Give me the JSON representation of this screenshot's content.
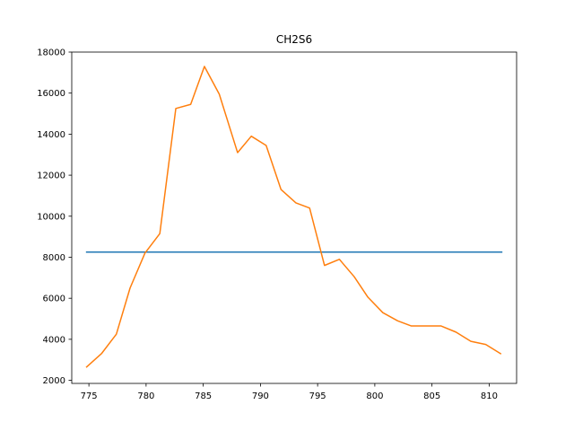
{
  "chart_data": {
    "type": "line",
    "title": "CH2S6",
    "xlabel": "",
    "ylabel": "",
    "xlim": [
      773.5,
      812.4
    ],
    "ylim": [
      1850,
      18000
    ],
    "x_ticks": [
      775,
      780,
      785,
      790,
      795,
      800,
      805,
      810
    ],
    "y_ticks": [
      2000,
      4000,
      6000,
      8000,
      10000,
      12000,
      14000,
      16000,
      18000
    ],
    "grid": false,
    "series": [
      {
        "color": "#1f77b4",
        "x": [
          774.8,
          811.1
        ],
        "y": [
          8250,
          8250
        ]
      },
      {
        "color": "#ff7f0e",
        "x": [
          774.8,
          776.1,
          777.4,
          778.6,
          779.9,
          781.2,
          782.6,
          783.9,
          785.1,
          786.4,
          788.0,
          789.2,
          790.5,
          791.8,
          793.1,
          794.3,
          795.6,
          796.9,
          798.2,
          799.4,
          800.7,
          802.0,
          803.2,
          804.5,
          805.8,
          807.1,
          808.4,
          809.7,
          811.0
        ],
        "y": [
          2650,
          3300,
          4250,
          6500,
          8200,
          9150,
          15250,
          15450,
          17300,
          15950,
          13100,
          13900,
          13450,
          11300,
          10650,
          10400,
          7600,
          7900,
          7050,
          6050,
          5300,
          4900,
          4650,
          4650,
          4650,
          4350,
          3900,
          3750,
          3300
        ]
      }
    ]
  }
}
